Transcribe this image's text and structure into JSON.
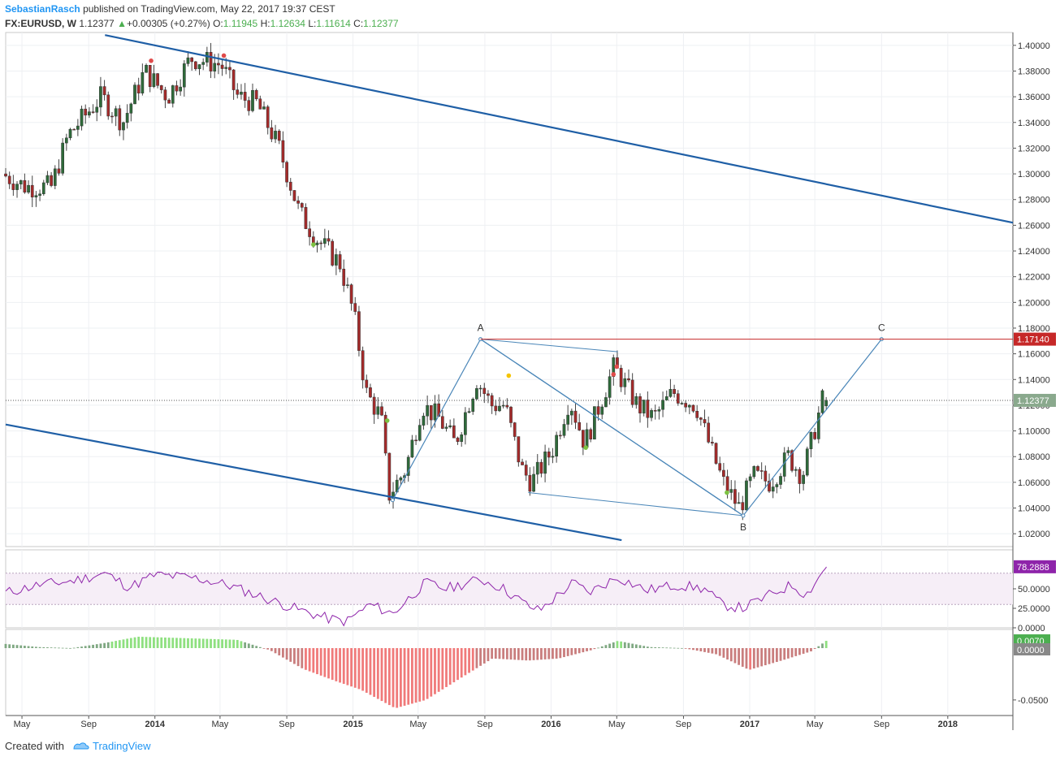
{
  "header": {
    "author": "SebastianRasch",
    "published": "published on TradingView.com, May 22, 2017 19:37 CEST",
    "symbol": "FX:EURUSD, W",
    "last": "1.12377",
    "change": "+0.00305 (+0.27%)",
    "o_label": "O:",
    "o_value": "1.11945",
    "h_label": "H:",
    "h_value": "1.12634",
    "l_label": "L:",
    "l_value": "1.11614",
    "c_label": "C:",
    "c_value": "1.12377"
  },
  "footer": {
    "created_with": "Created with",
    "brand": "TradingView"
  },
  "colors": {
    "bull": "#4caf50",
    "bear": "#e53935",
    "candle_bull": "#2e6b3a",
    "candle_bear": "#a52a2a",
    "channel": "#1f5fa6",
    "pattern": "#4a86b8",
    "target": "#c62828",
    "rsi": "#8e24aa"
  },
  "chart_data": {
    "type": "candlestick",
    "symbol": "FX:EURUSD",
    "interval": "W",
    "ylim": [
      1.01,
      1.41
    ],
    "y_ticks": [
      "1.40000",
      "1.38000",
      "1.36000",
      "1.34000",
      "1.32000",
      "1.30000",
      "1.28000",
      "1.26000",
      "1.24000",
      "1.22000",
      "1.20000",
      "1.18000",
      "1.16000",
      "1.14000",
      "1.12000",
      "1.10000",
      "1.08000",
      "1.06000",
      "1.04000",
      "1.02000"
    ],
    "x_ticks": [
      "May",
      "Sep",
      "2014",
      "May",
      "Sep",
      "2015",
      "May",
      "Sep",
      "2016",
      "May",
      "Sep",
      "2017",
      "May",
      "Sep",
      "2018"
    ],
    "x_range": [
      "2013-04",
      "2018-05"
    ],
    "price_path": [
      [
        "2013-04-01",
        1.3
      ],
      [
        "2013-05-15",
        1.29
      ],
      [
        "2013-07-01",
        1.29
      ],
      [
        "2013-08-01",
        1.33
      ],
      [
        "2013-10-01",
        1.36
      ],
      [
        "2013-11-10",
        1.34
      ],
      [
        "2013-12-20",
        1.38
      ],
      [
        "2014-02-01",
        1.36
      ],
      [
        "2014-03-15",
        1.39
      ],
      [
        "2014-05-10",
        1.385
      ],
      [
        "2014-06-10",
        1.36
      ],
      [
        "2014-07-15",
        1.355
      ],
      [
        "2014-08-25",
        1.32
      ],
      [
        "2014-10-01",
        1.27
      ],
      [
        "2014-11-01",
        1.25
      ],
      [
        "2014-12-15",
        1.23
      ],
      [
        "2015-01-10",
        1.19
      ],
      [
        "2015-02-01",
        1.13
      ],
      [
        "2015-03-01",
        1.11
      ],
      [
        "2015-03-15",
        1.05
      ],
      [
        "2015-04-15",
        1.07
      ],
      [
        "2015-05-15",
        1.12
      ],
      [
        "2015-06-15",
        1.11
      ],
      [
        "2015-07-15",
        1.09
      ],
      [
        "2015-08-24",
        1.14
      ],
      [
        "2015-09-20",
        1.12
      ],
      [
        "2015-10-15",
        1.12
      ],
      [
        "2015-11-15",
        1.07
      ],
      [
        "2015-12-03",
        1.06
      ],
      [
        "2016-01-10",
        1.085
      ],
      [
        "2016-02-11",
        1.125
      ],
      [
        "2016-03-10",
        1.09
      ],
      [
        "2016-05-03",
        1.15
      ],
      [
        "2016-06-15",
        1.12
      ],
      [
        "2016-07-15",
        1.11
      ],
      [
        "2016-08-20",
        1.13
      ],
      [
        "2016-10-01",
        1.12
      ],
      [
        "2016-10-25",
        1.09
      ],
      [
        "2016-11-20",
        1.06
      ],
      [
        "2016-12-20",
        1.04
      ],
      [
        "2017-01-15",
        1.065
      ],
      [
        "2017-02-15",
        1.06
      ],
      [
        "2017-03-20",
        1.08
      ],
      [
        "2017-04-15",
        1.065
      ],
      [
        "2017-05-22",
        1.12377
      ]
    ],
    "last_price": "1.12377",
    "target_price": "1.17140",
    "channel_lines": [
      {
        "from": [
          "2013-10-01",
          1.408
        ],
        "to": [
          "2018-05-01",
          1.262
        ]
      },
      {
        "from": [
          "2013-04-01",
          1.105
        ],
        "to": [
          "2016-05-10",
          1.015
        ]
      }
    ],
    "pattern_points": [
      {
        "label": "A",
        "date": "2015-08-24",
        "price": 1.1714
      },
      {
        "label": "B",
        "date": "2016-12-20",
        "price": 1.0341
      },
      {
        "label": "C",
        "date": "2017-09-01",
        "price": 1.1714
      },
      {
        "label": "",
        "date": "2015-03-15",
        "price": 1.0462
      }
    ],
    "fork_lines": [
      {
        "from": [
          "2015-08-24",
          1.1714
        ],
        "to": [
          "2016-05-03",
          1.1616
        ]
      },
      {
        "from": [
          "2015-11-20",
          1.052
        ],
        "to": [
          "2016-12-20",
          1.0341
        ]
      }
    ],
    "dots": [
      {
        "date": "2013-12-25",
        "price": 1.388,
        "color": "bear"
      },
      {
        "date": "2014-05-08",
        "price": 1.392,
        "color": "bear"
      },
      {
        "date": "2014-10-20",
        "price": 1.245,
        "color": "bull"
      },
      {
        "date": "2015-03-05",
        "price": 1.108,
        "color": "bull"
      },
      {
        "date": "2015-10-15",
        "price": 1.143,
        "color": "yellow"
      },
      {
        "date": "2016-03-05",
        "price": 1.087,
        "color": "bull"
      },
      {
        "date": "2016-04-25",
        "price": 1.144,
        "color": "bear"
      },
      {
        "date": "2016-05-01",
        "price": 1.15,
        "color": "bear"
      },
      {
        "date": "2016-11-20",
        "price": 1.052,
        "color": "bull"
      }
    ],
    "rsi": {
      "last": "78.2888",
      "band": [
        30,
        70
      ],
      "ylim": [
        0,
        100
      ],
      "y_ticks": [
        "50.0000",
        "25.0000",
        "0.0000"
      ],
      "path": [
        [
          "2013-04-01",
          45
        ],
        [
          "2013-06-01",
          55
        ],
        [
          "2013-08-01",
          60
        ],
        [
          "2013-10-01",
          70
        ],
        [
          "2013-11-15",
          52
        ],
        [
          "2014-01-01",
          68
        ],
        [
          "2014-03-15",
          64
        ],
        [
          "2014-05-15",
          55
        ],
        [
          "2014-07-15",
          40
        ],
        [
          "2014-09-15",
          25
        ],
        [
          "2014-11-15",
          12
        ],
        [
          "2014-12-20",
          8
        ],
        [
          "2015-02-01",
          30
        ],
        [
          "2015-03-15",
          18
        ],
        [
          "2015-05-15",
          58
        ],
        [
          "2015-06-20",
          50
        ],
        [
          "2015-08-24",
          62
        ],
        [
          "2015-10-01",
          52
        ],
        [
          "2015-11-20",
          28
        ],
        [
          "2015-12-10",
          22
        ],
        [
          "2016-02-11",
          58
        ],
        [
          "2016-03-10",
          45
        ],
        [
          "2016-05-03",
          65
        ],
        [
          "2016-06-25",
          48
        ],
        [
          "2016-08-20",
          55
        ],
        [
          "2016-10-10",
          50
        ],
        [
          "2016-11-10",
          30
        ],
        [
          "2016-12-20",
          25
        ],
        [
          "2017-02-15",
          45
        ],
        [
          "2017-03-20",
          55
        ],
        [
          "2017-04-15",
          42
        ],
        [
          "2017-05-22",
          78.29
        ]
      ]
    },
    "macd_hist": {
      "last": "0.0070",
      "zero": "0.0000",
      "ylim": [
        -0.065,
        0.018
      ],
      "y_ticks": [
        "-0.0500"
      ],
      "path": [
        [
          "2013-04-01",
          0.004
        ],
        [
          "2013-06-01",
          0.001
        ],
        [
          "2013-08-01",
          0.0
        ],
        [
          "2013-10-01",
          0.005
        ],
        [
          "2013-12-01",
          0.011
        ],
        [
          "2014-02-01",
          0.01
        ],
        [
          "2014-04-01",
          0.009
        ],
        [
          "2014-06-01",
          0.008
        ],
        [
          "2014-08-01",
          -0.002
        ],
        [
          "2014-10-01",
          -0.02
        ],
        [
          "2014-12-01",
          -0.032
        ],
        [
          "2015-01-15",
          -0.04
        ],
        [
          "2015-03-20",
          -0.058
        ],
        [
          "2015-05-15",
          -0.05
        ],
        [
          "2015-07-15",
          -0.03
        ],
        [
          "2015-09-15",
          -0.01
        ],
        [
          "2015-11-20",
          -0.012
        ],
        [
          "2016-01-15",
          -0.01
        ],
        [
          "2016-03-15",
          -0.002
        ],
        [
          "2016-05-03",
          0.007
        ],
        [
          "2016-07-01",
          0.001
        ],
        [
          "2016-09-01",
          0.0
        ],
        [
          "2016-11-01",
          -0.006
        ],
        [
          "2016-12-31",
          -0.021
        ],
        [
          "2017-03-01",
          -0.012
        ],
        [
          "2017-04-25",
          -0.003
        ],
        [
          "2017-05-22",
          0.007
        ]
      ]
    }
  }
}
